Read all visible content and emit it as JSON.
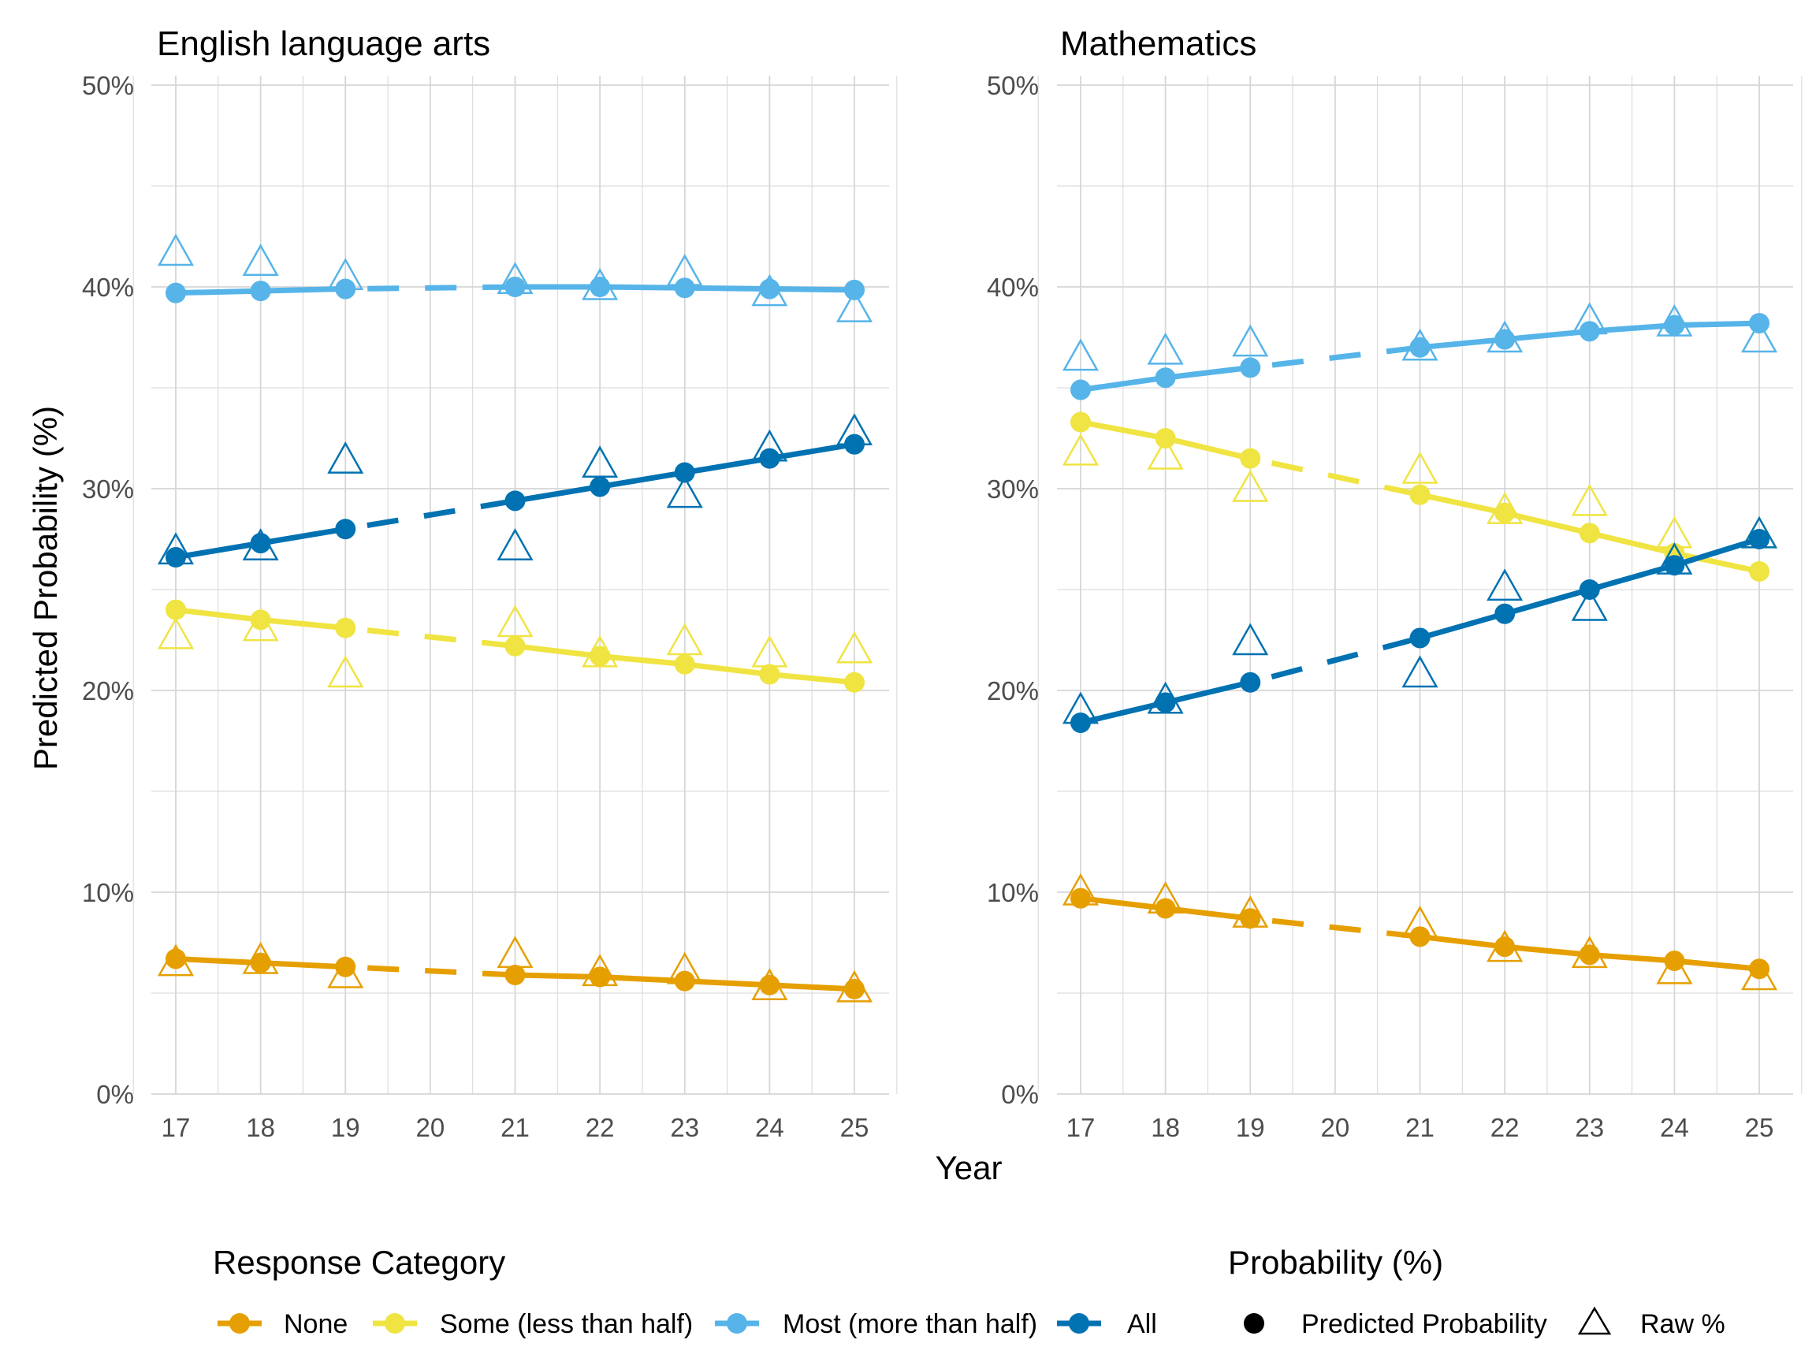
{
  "chart_data": [
    {
      "type": "line",
      "title": "English language arts",
      "xlabel": "Year",
      "ylabel": "Predicted Probability (%)",
      "x": [
        17,
        18,
        19,
        21,
        22,
        23,
        24,
        25
      ],
      "x_ticks": [
        "17",
        "18",
        "19",
        "20",
        "21",
        "22",
        "23",
        "24",
        "25"
      ],
      "y_ticks": [
        "0%",
        "10%",
        "20%",
        "30%",
        "40%",
        "50%"
      ],
      "ylim": [
        0,
        50
      ],
      "xlim": [
        17,
        25
      ],
      "grid": true,
      "dashed_gap": [
        19,
        21
      ],
      "series": [
        {
          "name": "None",
          "color": "#E69F00",
          "predicted": [
            6.7,
            6.5,
            6.3,
            5.9,
            5.8,
            5.6,
            5.4,
            5.2
          ],
          "raw": [
            6.6,
            6.7,
            6.0,
            7.0,
            6.1,
            6.2,
            5.4,
            5.3
          ]
        },
        {
          "name": "Some (less than half)",
          "color": "#F0E442",
          "predicted": [
            24.0,
            23.5,
            23.1,
            22.2,
            21.7,
            21.3,
            20.8,
            20.4
          ],
          "raw": [
            22.8,
            23.2,
            20.9,
            23.4,
            21.9,
            22.5,
            21.9,
            22.1
          ]
        },
        {
          "name": "Most (more than half)",
          "color": "#56B4E9",
          "predicted": [
            39.7,
            39.8,
            39.9,
            40.0,
            40.0,
            39.95,
            39.9,
            39.85
          ],
          "raw": [
            41.8,
            41.3,
            40.6,
            40.4,
            40.1,
            40.8,
            39.8,
            39.0
          ]
        },
        {
          "name": "All",
          "color": "#0072B2",
          "predicted": [
            26.6,
            27.3,
            28.0,
            29.4,
            30.1,
            30.8,
            31.5,
            32.2
          ],
          "raw": [
            27.0,
            27.2,
            31.5,
            27.2,
            31.3,
            29.8,
            32.1,
            32.9
          ]
        }
      ]
    },
    {
      "type": "line",
      "title": "Mathematics",
      "xlabel": "Year",
      "ylabel": "Predicted Probability (%)",
      "x": [
        17,
        18,
        19,
        21,
        22,
        23,
        24,
        25
      ],
      "x_ticks": [
        "17",
        "18",
        "19",
        "20",
        "21",
        "22",
        "23",
        "24",
        "25"
      ],
      "y_ticks": [
        "0%",
        "10%",
        "20%",
        "30%",
        "40%",
        "50%"
      ],
      "ylim": [
        0,
        50
      ],
      "xlim": [
        17,
        25
      ],
      "grid": true,
      "dashed_gap": [
        19,
        21
      ],
      "series": [
        {
          "name": "None",
          "color": "#E69F00",
          "predicted": [
            9.7,
            9.2,
            8.7,
            7.8,
            7.3,
            6.9,
            6.6,
            6.2
          ],
          "raw": [
            10.1,
            9.7,
            9.0,
            8.5,
            7.3,
            7.0,
            6.2,
            5.9
          ]
        },
        {
          "name": "Some (less than half)",
          "color": "#F0E442",
          "predicted": [
            33.3,
            32.5,
            31.5,
            29.7,
            28.8,
            27.8,
            26.8,
            25.9
          ],
          "raw": [
            31.9,
            31.7,
            30.1,
            31.0,
            29.0,
            29.4,
            27.8,
            27.8
          ]
        },
        {
          "name": "Most (more than half)",
          "color": "#56B4E9",
          "predicted": [
            34.9,
            35.5,
            36.0,
            37.0,
            37.4,
            37.8,
            38.1,
            38.2
          ],
          "raw": [
            36.6,
            36.9,
            37.3,
            37.1,
            37.5,
            38.4,
            38.3,
            37.5
          ]
        },
        {
          "name": "All",
          "color": "#0072B2",
          "predicted": [
            18.4,
            19.4,
            20.4,
            22.6,
            23.8,
            25.0,
            26.2,
            27.5
          ],
          "raw": [
            19.1,
            19.6,
            22.5,
            20.9,
            25.2,
            24.2,
            26.5,
            27.8
          ]
        }
      ]
    }
  ],
  "axis": {
    "xlabel": "Year",
    "ylabel": "Predicted Probability (%)"
  },
  "legend": {
    "position": "bottom",
    "category_title": "Response Category",
    "categories": [
      {
        "label": "None",
        "color": "#E69F00"
      },
      {
        "label": "Some (less than half)",
        "color": "#F0E442"
      },
      {
        "label": "Most (more than half)",
        "color": "#56B4E9"
      },
      {
        "label": "All",
        "color": "#0072B2"
      }
    ],
    "shape_title": "Probability (%)",
    "shapes": [
      {
        "label": "Predicted Probability",
        "icon": "filled-circle"
      },
      {
        "label": "Raw %",
        "icon": "hollow-triangle"
      }
    ]
  }
}
